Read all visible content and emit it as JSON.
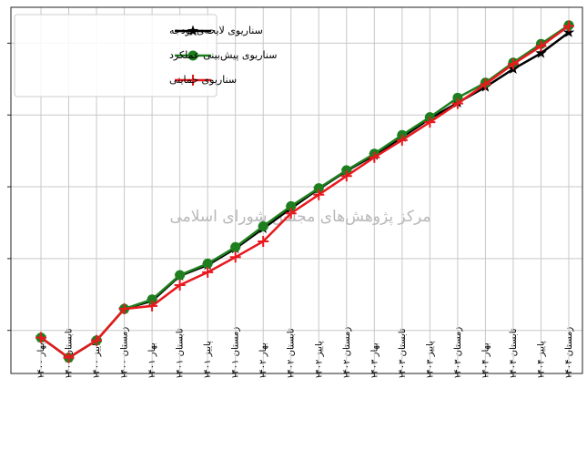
{
  "chart_data": {
    "type": "line",
    "watermark": "مرکز پژوهش‌های مجلس شورای اسلامی",
    "categories": [
      "بهار ۱۴۰۰",
      "تابستان ۱۴۰۰",
      "پاییز ۱۴۰۰",
      "زمستان ۱۴۰۰",
      "بهار ۱۴۰۱",
      "تابستان ۱۴۰۱",
      "پاییز ۱۴۰۱",
      "زمستان ۱۴۰۱",
      "بهار ۱۴۰۲",
      "تابستان ۱۴۰۲",
      "پاییز ۱۴۰۲",
      "زمستان ۱۴۰۲",
      "بهار ۱۴۰۳",
      "تابستان ۱۴۰۳",
      "پاییز ۱۴۰۳",
      "زمستان ۱۴۰۳",
      "بهار ۱۴۰۴",
      "تابستان ۱۴۰۴",
      "پاییز ۱۴۰۴",
      "زمستان ۱۴۰۴"
    ],
    "series": [
      {
        "name": "سناریوی لایحه‌ی بودجه",
        "color": "#000000",
        "marker": "star",
        "values": [
          0.9,
          0.62,
          0.86,
          1.3,
          1.41,
          1.76,
          1.91,
          2.14,
          2.42,
          2.7,
          2.97,
          3.22,
          3.44,
          3.69,
          3.95,
          4.17,
          4.39,
          4.64,
          4.86,
          5.15
        ]
      },
      {
        "name": "سناریوی پیش‌بینی عملکرد",
        "color": "#1e7f1e",
        "marker": "circle",
        "values": [
          0.9,
          0.62,
          0.86,
          1.3,
          1.43,
          1.77,
          1.93,
          2.16,
          2.45,
          2.73,
          2.98,
          3.23,
          3.46,
          3.72,
          3.97,
          4.24,
          4.45,
          4.73,
          4.99,
          5.25
        ]
      },
      {
        "name": "سناریوی حمایتی",
        "color": "#e8191e",
        "marker": "plus",
        "values": [
          0.9,
          0.62,
          0.86,
          1.3,
          1.34,
          1.63,
          1.81,
          2.02,
          2.24,
          2.63,
          2.89,
          3.15,
          3.41,
          3.65,
          3.9,
          4.16,
          4.43,
          4.71,
          4.96,
          5.24
        ]
      }
    ],
    "ylim": [
      0.4,
      5.5
    ],
    "yticks": [
      1,
      2,
      3,
      4,
      5
    ],
    "grid": true,
    "legend": "upper left"
  }
}
